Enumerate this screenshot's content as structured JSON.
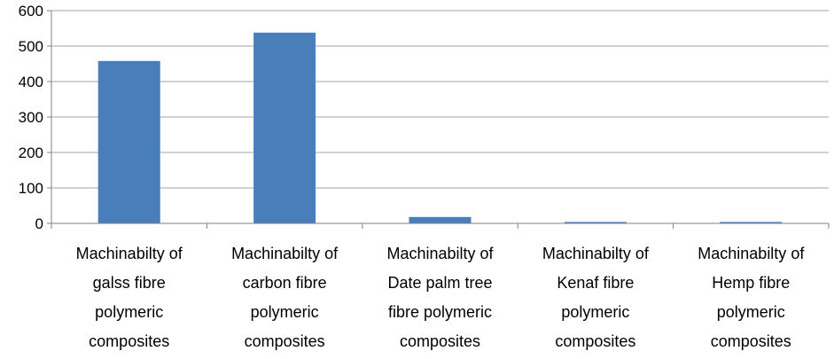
{
  "chart_data": {
    "type": "bar",
    "categories": [
      [
        "Machinabilty of",
        "galss fibre",
        "polymeric",
        "composites"
      ],
      [
        "Machinabilty of",
        "carbon fibre",
        "polymeric",
        "composites"
      ],
      [
        "Machinabilty of",
        "Date palm tree",
        "fibre polymeric",
        "composites"
      ],
      [
        "Machinabilty of",
        "Kenaf fibre",
        "polymeric",
        "composites"
      ],
      [
        "Machinabilty of",
        "Hemp fibre",
        "polymeric",
        "composites"
      ]
    ],
    "values": [
      458,
      538,
      18,
      4,
      4
    ],
    "ylim": [
      0,
      600
    ],
    "yticks": [
      0,
      100,
      200,
      300,
      400,
      500,
      600
    ],
    "grid": true,
    "legend": "none",
    "bar_color": "#4a7ebb",
    "grid_color": "#a6a6a6"
  }
}
